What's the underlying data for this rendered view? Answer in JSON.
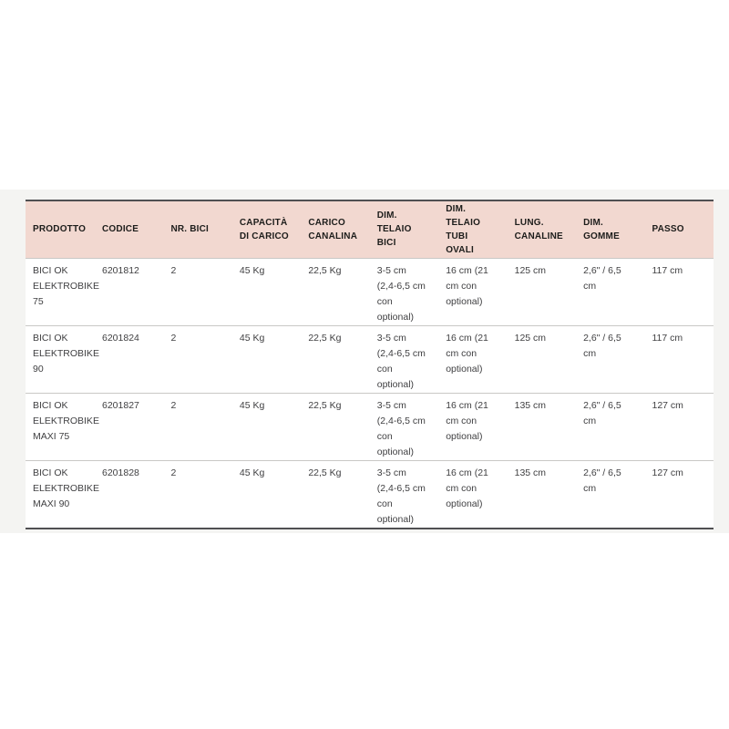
{
  "theme": {
    "section-bg": "#f4f4f2",
    "header-bg": "#f2d8d0",
    "header-text": "#1d1d1b",
    "body-text": "#3f3f41",
    "border-dark": "#505052",
    "row-line": "#c9c8c6",
    "page-bg": "#ffffff"
  },
  "table": {
    "columns": [
      "PRODOTTO",
      "CODICE",
      "NR. BICI",
      "CAPACITÀ DI CARICO",
      "CARICO CANALINA",
      "DIM. TELAIO BICI",
      "DIM. TELAIO TUBI OVALI",
      "LUNG. CANALINE",
      "DIM. GOMME",
      "PASSO"
    ],
    "rows": [
      [
        "BICI OK ELEKTROBIKE 75",
        "6201812",
        "2",
        "45 Kg",
        "22,5 Kg",
        "3-5 cm (2,4-6,5 cm con optional)",
        "16 cm (21 cm con optional)",
        "125 cm",
        "2,6\" / 6,5 cm",
        "117 cm"
      ],
      [
        "BICI OK ELEKTROBIKE 90",
        "6201824",
        "2",
        "45 Kg",
        "22,5 Kg",
        "3-5 cm (2,4-6,5 cm con optional)",
        "16 cm (21 cm con optional)",
        "125 cm",
        "2,6\" / 6,5 cm",
        "117 cm"
      ],
      [
        "BICI OK ELEKTROBIKE MAXI 75",
        "6201827",
        "2",
        "45 Kg",
        "22,5 Kg",
        "3-5 cm (2,4-6,5 cm con optional)",
        "16 cm (21 cm con optional)",
        "135 cm",
        "2,6\" / 6,5 cm",
        "127 cm"
      ],
      [
        "BICI OK ELEKTROBIKE MAXI 90",
        "6201828",
        "2",
        "45 Kg",
        "22,5 Kg",
        "3-5 cm (2,4-6,5 cm con optional)",
        "16 cm (21 cm con optional)",
        "135 cm",
        "2,6\" / 6,5 cm",
        "127 cm"
      ]
    ]
  }
}
